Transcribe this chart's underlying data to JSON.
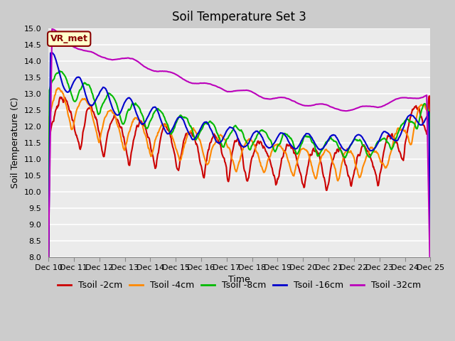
{
  "title": "Soil Temperature Set 3",
  "xlabel": "Time",
  "ylabel": "Soil Temperature (C)",
  "ylim": [
    8.0,
    15.0
  ],
  "yticks": [
    8.0,
    8.5,
    9.0,
    9.5,
    10.0,
    10.5,
    11.0,
    11.5,
    12.0,
    12.5,
    13.0,
    13.5,
    14.0,
    14.5,
    15.0
  ],
  "xtick_labels": [
    "Dec 10",
    "Dec 11",
    "Dec 12",
    "Dec 13",
    "Dec 14",
    "Dec 15",
    "Dec 16",
    "Dec 17",
    "Dec 18",
    "Dec 19",
    "Dec 20",
    "Dec 21",
    "Dec 22",
    "Dec 23",
    "Dec 24",
    "Dec 25"
  ],
  "series_colors": [
    "#cc0000",
    "#ff8800",
    "#00bb00",
    "#0000cc",
    "#bb00bb"
  ],
  "series_labels": [
    "Tsoil -2cm",
    "Tsoil -4cm",
    "Tsoil -8cm",
    "Tsoil -16cm",
    "Tsoil -32cm"
  ],
  "vr_met_label": "VR_met",
  "vr_met_box_color": "#ffffcc",
  "vr_met_border_color": "#880000",
  "vr_met_text_color": "#880000",
  "background_color": "#cccccc",
  "plot_bg_color": "#ebebeb",
  "grid_color": "#ffffff",
  "title_fontsize": 12,
  "axis_fontsize": 9,
  "tick_fontsize": 8,
  "legend_fontsize": 9,
  "line_width": 1.5
}
